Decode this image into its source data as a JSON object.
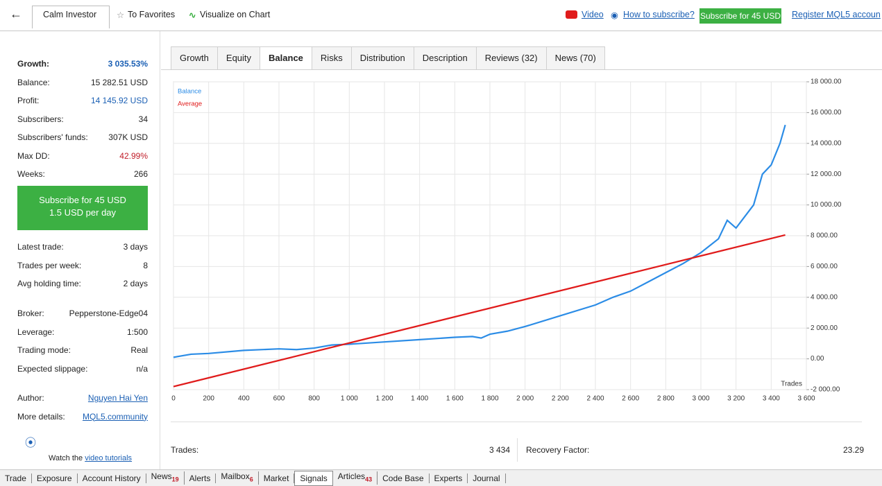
{
  "toolbar": {
    "title": "Calm Investor",
    "favorites": "To Favorites",
    "visualize": "Visualize on Chart",
    "video": "Video",
    "how": "How to subscribe?",
    "subscribe": "Subscribe for 45 USD",
    "register": "Register MQL5 accoun"
  },
  "sidebar": {
    "groups": [
      [
        {
          "label": "Growth:",
          "value": "3 035.53%",
          "color": "#1a5fb4",
          "bold": true
        },
        {
          "label": "Balance:",
          "value": "15 282.51 USD"
        },
        {
          "label": "Profit:",
          "value": "14 145.92 USD",
          "color": "#1a5fb4"
        },
        {
          "label": "Subscribers:",
          "value": "34"
        },
        {
          "label": "Subscribers' funds:",
          "value": "307K USD"
        },
        {
          "label": "Max DD:",
          "value": "42.99%",
          "color": "#c01c28"
        },
        {
          "label": "Weeks:",
          "value": "266"
        }
      ],
      [
        {
          "label": "Latest trade:",
          "value": "3 days"
        },
        {
          "label": "Trades per week:",
          "value": "8"
        },
        {
          "label": "Avg holding time:",
          "value": "2 days"
        }
      ],
      [
        {
          "label": "Broker:",
          "value": "Pepperstone-Edge04"
        },
        {
          "label": "Leverage:",
          "value": "1:500"
        },
        {
          "label": "Trading mode:",
          "value": "Real"
        },
        {
          "label": "Expected slippage:",
          "value": "n/a"
        }
      ],
      [
        {
          "label": "Author:",
          "value": "Nguyen Hai Yen",
          "link": true
        },
        {
          "label": "More details:",
          "value": "MQL5.community",
          "link": true
        }
      ]
    ],
    "subscribe_button": [
      "Subscribe for 45 USD",
      "1.5 USD per day"
    ],
    "tutorial": {
      "prefix": "Watch the",
      "link": "video tutorials"
    }
  },
  "tabs": [
    "Growth",
    "Equity",
    "Balance",
    "Risks",
    "Distribution",
    "Description",
    "Reviews (32)",
    "News (70)"
  ],
  "active_tab": 2,
  "chart_data": {
    "type": "line",
    "x_label": "Trades",
    "legend": "upper left",
    "grid": true,
    "xlim": [
      0,
      3600
    ],
    "ylim": [
      -2000,
      18000
    ],
    "xticks": [
      0,
      200,
      400,
      600,
      800,
      {
        "value": 1000,
        "label": "1 000"
      },
      {
        "value": 1200,
        "label": "1 200"
      },
      {
        "value": 1400,
        "label": "1 400"
      },
      {
        "value": 1600,
        "label": "1 600"
      },
      {
        "value": 1800,
        "label": "1 800"
      },
      {
        "value": 2000,
        "label": "2 000"
      },
      {
        "value": 2200,
        "label": "2 200"
      },
      {
        "value": 2400,
        "label": "2 400"
      },
      {
        "value": 2600,
        "label": "2 600"
      },
      {
        "value": 2800,
        "label": "2 800"
      },
      {
        "value": 3000,
        "label": "3 000"
      },
      {
        "value": 3200,
        "label": "3 200"
      },
      {
        "value": 3400,
        "label": "3 400"
      },
      {
        "value": 3600,
        "label": "3 600"
      }
    ],
    "yticks": [
      {
        "value": -2000,
        "label": "-2 000.00"
      },
      {
        "value": 0,
        "label": "0.00"
      },
      {
        "value": 2000,
        "label": "2 000.00"
      },
      {
        "value": 4000,
        "label": "4 000.00"
      },
      {
        "value": 6000,
        "label": "6 000.00"
      },
      {
        "value": 8000,
        "label": "8 000.00"
      },
      {
        "value": 10000,
        "label": "10 000.00"
      },
      {
        "value": 12000,
        "label": "12 000.00"
      },
      {
        "value": 14000,
        "label": "14 000.00"
      },
      {
        "value": 16000,
        "label": "16 000.00"
      },
      {
        "value": 18000,
        "label": "18 000.00"
      }
    ],
    "series": [
      {
        "name": "Balance",
        "color": "#2b8ce6",
        "x": [
          0,
          100,
          200,
          400,
          600,
          700,
          800,
          900,
          1000,
          1200,
          1400,
          1600,
          1700,
          1750,
          1800,
          1900,
          2000,
          2200,
          2400,
          2500,
          2600,
          2700,
          2800,
          2900,
          3000,
          3100,
          3150,
          3200,
          3300,
          3350,
          3400,
          3450,
          3480
        ],
        "values": [
          100,
          300,
          350,
          550,
          650,
          600,
          700,
          900,
          950,
          1100,
          1250,
          1400,
          1450,
          1350,
          1600,
          1800,
          2100,
          2800,
          3500,
          4000,
          4400,
          5000,
          5600,
          6200,
          6900,
          7800,
          9000,
          8500,
          10000,
          12000,
          12600,
          14000,
          15200
        ]
      },
      {
        "name": "Average",
        "color": "#e01b1b",
        "x": [
          0,
          3480
        ],
        "values": [
          -1800,
          8050
        ]
      }
    ]
  },
  "summary": [
    {
      "label": "Trades:",
      "value": "3 434"
    },
    {
      "label": "Recovery Factor:",
      "value": "23.29"
    }
  ],
  "bottom_tabs": [
    {
      "name": "Trade"
    },
    {
      "name": "Exposure"
    },
    {
      "name": "Account History"
    },
    {
      "name": "News",
      "badge": 19
    },
    {
      "name": "Alerts"
    },
    {
      "name": "Mailbox",
      "badge": 6
    },
    {
      "name": "Market"
    },
    {
      "name": "Signals",
      "active": true
    },
    {
      "name": "Articles",
      "badge": 43
    },
    {
      "name": "Code Base"
    },
    {
      "name": "Experts"
    },
    {
      "name": "Journal"
    }
  ]
}
